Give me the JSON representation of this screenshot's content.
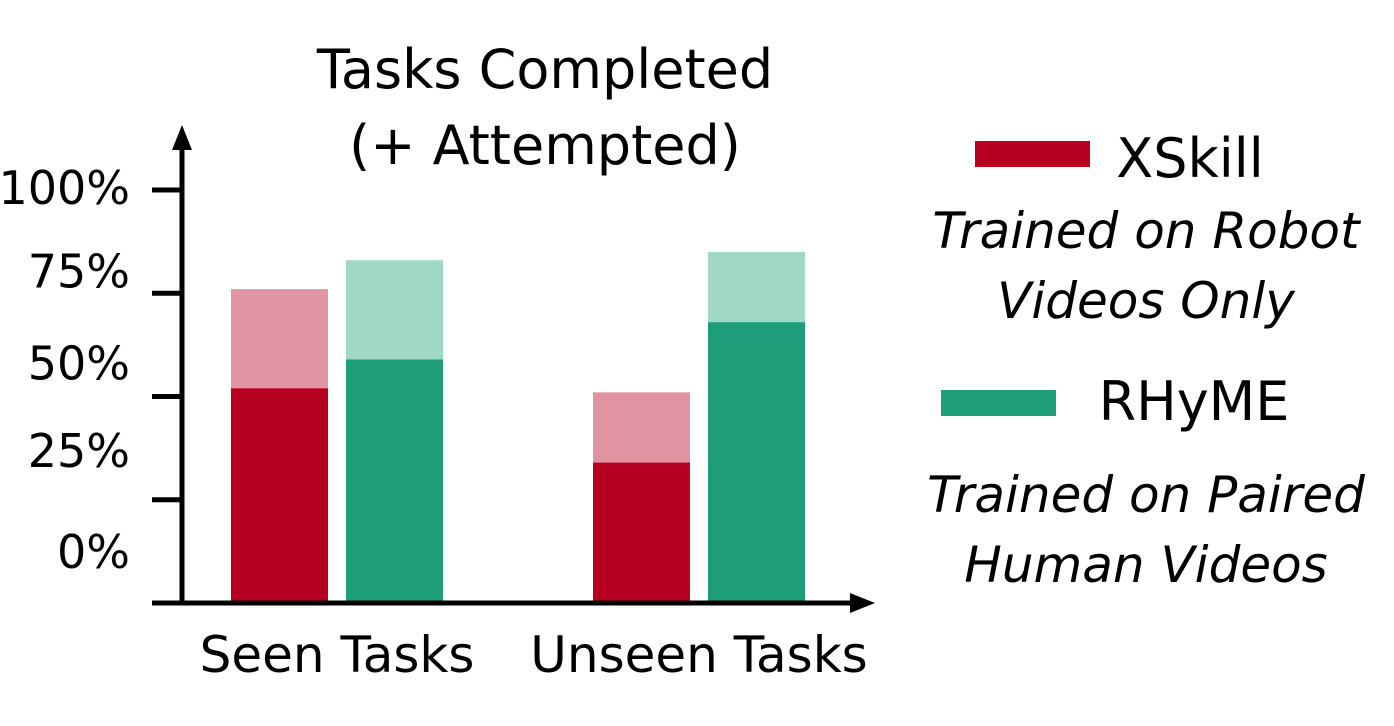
{
  "chart_data": {
    "type": "bar",
    "stacked": true,
    "title": [
      "Tasks Completed",
      "(+ Attempted)"
    ],
    "categories": [
      "Seen Tasks",
      "Unseen Tasks"
    ],
    "y_ticks": [
      "0%",
      "25%",
      "50%",
      "75%",
      "100%"
    ],
    "ylim": [
      0,
      100
    ],
    "grid": false,
    "legend_position": "right",
    "series": [
      {
        "name": "XSkill",
        "description": [
          "Trained on Robot",
          "Videos Only"
        ],
        "completed": [
          52,
          34
        ],
        "attempted": [
          76,
          51
        ],
        "color": "#b70021",
        "light_color": "#e093a0"
      },
      {
        "name": "RHyME",
        "description": [
          "Trained on Paired",
          "Human Videos"
        ],
        "completed": [
          59,
          68
        ],
        "attempted": [
          83,
          85
        ],
        "color": "#1d9e78",
        "light_color": "#a0d8c6"
      }
    ]
  }
}
